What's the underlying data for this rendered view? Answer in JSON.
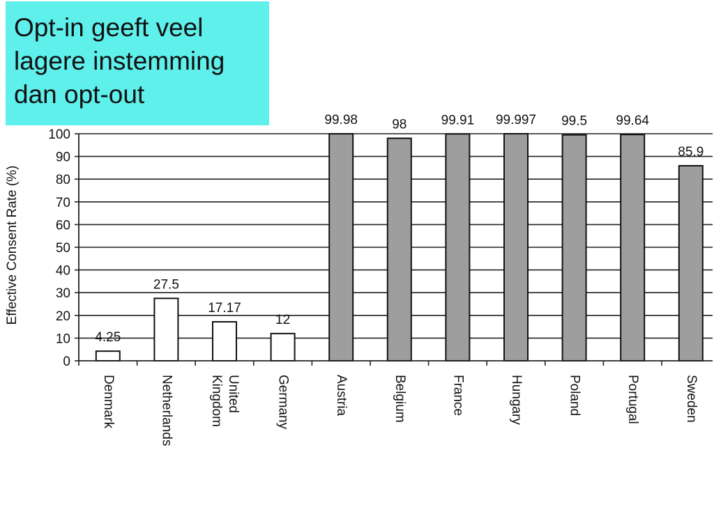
{
  "slide": {
    "callout_text": "Opt-in geeft veel lagere instemming dan opt-out",
    "callout_color": "#5ff0ec"
  },
  "chart_data": {
    "type": "bar",
    "title": "",
    "xlabel": "",
    "ylabel": "Effective Consent Rate (%)",
    "ylim": [
      0,
      100
    ],
    "yticks": [
      0,
      10,
      20,
      30,
      40,
      50,
      60,
      70,
      80,
      90,
      100
    ],
    "grid": true,
    "categories": [
      [
        "Denmark"
      ],
      [
        "Netherlands"
      ],
      [
        "United",
        "Kingdom"
      ],
      [
        "Germany"
      ],
      [
        "Austria"
      ],
      [
        "Belgium"
      ],
      [
        "France"
      ],
      [
        "Hungary"
      ],
      [
        "Poland"
      ],
      [
        "Portugal"
      ],
      [
        "Sweden"
      ]
    ],
    "values": [
      4.25,
      27.5,
      17.17,
      12,
      99.98,
      98,
      99.91,
      99.997,
      99.5,
      99.64,
      85.9
    ],
    "data_labels": [
      "4.25",
      "27.5",
      "17.17",
      "12",
      "99.98",
      "98",
      "99.91",
      "99.997",
      "99.5",
      "99.64",
      "85.9"
    ],
    "bar_colors": [
      "#ffffff",
      "#ffffff",
      "#ffffff",
      "#ffffff",
      "#9e9e9e",
      "#9e9e9e",
      "#9e9e9e",
      "#9e9e9e",
      "#9e9e9e",
      "#9e9e9e",
      "#9e9e9e"
    ]
  }
}
